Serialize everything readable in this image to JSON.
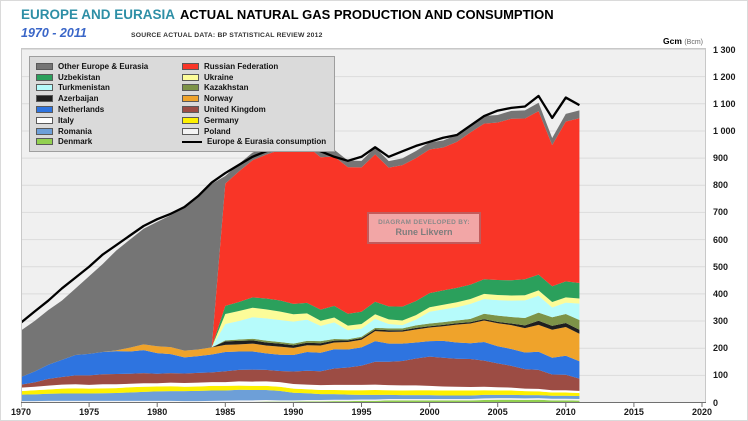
{
  "header": {
    "title_region": "EUROPE AND EURASIA",
    "title_main": "ACTUAL NATURAL GAS PRODUCTION  AND CONSUMPTION",
    "subtitle": "1970 - 2011",
    "source_note": "SOURCE ACTUAL DATA: BP STATISTICAL REVIEW  2012",
    "unit_label": "Gcm",
    "unit_label_secondary": "(Bcm)"
  },
  "annotation": {
    "line1": "DIAGRAM DEVELOPED BY:",
    "line2": "Rune Likvern"
  },
  "colors": {
    "title_region": "#2E8FA6",
    "subtitle": "#3A66C8",
    "plot_background": "#F0F0F0",
    "gridline": "#DBDBDB",
    "axis": "#707070",
    "legend_background": "#DADADA",
    "annotation_background": "#F2A6A6",
    "annotation_border": "#C25B5B"
  },
  "chart_data": {
    "type": "area",
    "stacked": true,
    "title": "Europe and Eurasia actual natural gas production and consumption 1970 - 2011",
    "unit": "Gcm (Bcm)",
    "xlim": [
      1970,
      2020
    ],
    "ylim": [
      0,
      1300
    ],
    "x_ticks": [
      1970,
      1975,
      1980,
      1985,
      1990,
      1995,
      2000,
      2005,
      2010,
      2015,
      2020
    ],
    "y_tick_labels": [
      "0",
      "100",
      "200",
      "300",
      "400",
      "500",
      "600",
      "700",
      "800",
      "900",
      "1 000",
      "1 100",
      "1 200",
      "1 300"
    ],
    "grid": true,
    "legend_position": "top-left",
    "years": [
      1970,
      1971,
      1972,
      1973,
      1974,
      1975,
      1976,
      1977,
      1978,
      1979,
      1980,
      1981,
      1982,
      1983,
      1984,
      1985,
      1986,
      1987,
      1988,
      1989,
      1990,
      1991,
      1992,
      1993,
      1994,
      1995,
      1996,
      1997,
      1998,
      1999,
      2000,
      2001,
      2002,
      2003,
      2004,
      2005,
      2006,
      2007,
      2008,
      2009,
      2010,
      2011
    ],
    "series_bottom_to_top": [
      {
        "name": "Denmark",
        "color": "#92D050",
        "values": [
          0,
          0,
          0,
          0,
          0,
          0,
          0,
          0,
          0,
          0,
          0,
          0,
          0,
          0,
          1,
          1,
          2,
          2,
          3,
          3,
          3,
          4,
          4,
          5,
          5,
          6,
          6,
          8,
          8,
          8,
          8,
          8,
          8,
          8,
          9,
          10,
          10,
          9,
          10,
          8,
          8,
          7
        ]
      },
      {
        "name": "Poland",
        "color": "#F3F3F3",
        "values": [
          5,
          5,
          6,
          6,
          6,
          6,
          6,
          6,
          6,
          6,
          6,
          6,
          5,
          5,
          5,
          6,
          6,
          6,
          6,
          5,
          5,
          5,
          5,
          5,
          5,
          5,
          5,
          5,
          5,
          5,
          5,
          5,
          5,
          5,
          6,
          6,
          6,
          6,
          6,
          6,
          6,
          6
        ]
      },
      {
        "name": "Romania",
        "color": "#6D9FD8",
        "values": [
          24,
          25,
          26,
          27,
          27,
          27,
          28,
          29,
          31,
          33,
          35,
          36,
          37,
          38,
          38,
          37,
          39,
          38,
          37,
          35,
          28,
          25,
          22,
          21,
          19,
          17,
          17,
          15,
          14,
          14,
          14,
          13,
          13,
          13,
          13,
          12,
          12,
          12,
          11,
          11,
          11,
          11
        ]
      },
      {
        "name": "Germany",
        "color": "#FDF100",
        "values": [
          13,
          15,
          16,
          18,
          19,
          18,
          18,
          18,
          19,
          19,
          18,
          18,
          16,
          16,
          17,
          17,
          15,
          15,
          15,
          15,
          15,
          15,
          15,
          15,
          16,
          17,
          18,
          17,
          17,
          18,
          18,
          18,
          18,
          18,
          17,
          16,
          16,
          15,
          14,
          12,
          12,
          11
        ]
      },
      {
        "name": "Italy",
        "color": "#FFFFFF",
        "values": [
          13,
          13,
          14,
          15,
          15,
          14,
          15,
          14,
          13,
          13,
          12,
          13,
          14,
          14,
          14,
          14,
          16,
          16,
          17,
          17,
          17,
          17,
          18,
          19,
          20,
          20,
          20,
          19,
          19,
          18,
          16,
          15,
          14,
          13,
          13,
          12,
          11,
          9,
          9,
          8,
          8,
          8
        ]
      },
      {
        "name": "United Kingdom",
        "color": "#9C4C44",
        "values": [
          11,
          16,
          25,
          28,
          33,
          35,
          37,
          38,
          37,
          37,
          35,
          35,
          35,
          36,
          36,
          40,
          42,
          44,
          42,
          41,
          46,
          51,
          51,
          60,
          64,
          71,
          84,
          86,
          90,
          99,
          108,
          106,
          103,
          103,
          96,
          88,
          80,
          72,
          70,
          58,
          57,
          45
        ]
      },
      {
        "name": "Netherlands",
        "color": "#2E74E0",
        "values": [
          28,
          40,
          52,
          63,
          75,
          79,
          82,
          84,
          82,
          85,
          76,
          70,
          59,
          62,
          66,
          71,
          68,
          67,
          61,
          60,
          61,
          69,
          68,
          71,
          66,
          67,
          76,
          67,
          64,
          59,
          57,
          62,
          60,
          58,
          69,
          63,
          62,
          61,
          67,
          62,
          70,
          64
        ]
      },
      {
        "name": "Norway",
        "color": "#EFA32B",
        "values": [
          0,
          0,
          0,
          0,
          0,
          0,
          0,
          3,
          14,
          21,
          25,
          26,
          25,
          24,
          26,
          26,
          26,
          29,
          29,
          30,
          26,
          25,
          27,
          25,
          28,
          28,
          37,
          43,
          44,
          48,
          50,
          54,
          66,
          73,
          79,
          85,
          88,
          90,
          99,
          103,
          106,
          101
        ]
      },
      {
        "name": "Azerbaijan",
        "color": "#1F1F1F",
        "values": [
          0,
          0,
          0,
          0,
          0,
          0,
          0,
          0,
          0,
          0,
          0,
          0,
          0,
          0,
          0,
          13,
          13,
          12,
          11,
          11,
          10,
          9,
          8,
          7,
          6,
          6,
          6,
          6,
          5,
          6,
          5,
          5,
          5,
          5,
          5,
          5,
          6,
          10,
          15,
          14,
          15,
          15
        ]
      },
      {
        "name": "Kazakhstan",
        "color": "#7D9348",
        "values": [
          0,
          0,
          0,
          0,
          0,
          0,
          0,
          0,
          0,
          0,
          0,
          0,
          0,
          0,
          0,
          4,
          5,
          6,
          7,
          6,
          6,
          7,
          8,
          6,
          4,
          5,
          6,
          7,
          7,
          9,
          10,
          10,
          10,
          12,
          20,
          23,
          24,
          27,
          30,
          32,
          33,
          36
        ]
      },
      {
        "name": "Turkmenistan",
        "color": "#B6FBFB",
        "values": [
          0,
          0,
          0,
          0,
          0,
          0,
          0,
          0,
          0,
          0,
          0,
          0,
          0,
          0,
          0,
          60,
          68,
          79,
          82,
          81,
          81,
          78,
          56,
          61,
          33,
          30,
          33,
          16,
          12,
          21,
          43,
          47,
          49,
          55,
          54,
          57,
          60,
          65,
          62,
          36,
          42,
          60
        ]
      },
      {
        "name": "Ukraine",
        "color": "#FCFC99",
        "values": [
          0,
          0,
          0,
          0,
          0,
          0,
          0,
          0,
          0,
          0,
          0,
          0,
          0,
          0,
          0,
          37,
          37,
          35,
          33,
          31,
          27,
          23,
          19,
          18,
          17,
          17,
          17,
          17,
          17,
          17,
          17,
          17,
          18,
          18,
          19,
          19,
          19,
          19,
          20,
          20,
          19,
          19
        ]
      },
      {
        "name": "Uzbekistan",
        "color": "#2BA05C",
        "values": [
          0,
          0,
          0,
          0,
          0,
          0,
          0,
          0,
          0,
          0,
          0,
          0,
          0,
          0,
          0,
          30,
          33,
          38,
          40,
          41,
          38,
          39,
          41,
          43,
          44,
          45,
          46,
          48,
          51,
          52,
          52,
          53,
          53,
          53,
          54,
          55,
          56,
          59,
          58,
          58,
          59,
          57
        ]
      },
      {
        "name": "Russian Federation",
        "color": "#F93527",
        "values": [
          0,
          0,
          0,
          0,
          0,
          0,
          0,
          0,
          0,
          0,
          0,
          0,
          0,
          0,
          0,
          450,
          481,
          505,
          530,
          554,
          590,
          577,
          561,
          550,
          540,
          532,
          543,
          511,
          521,
          526,
          529,
          526,
          538,
          561,
          573,
          580,
          595,
          592,
          602,
          520,
          589,
          607
        ]
      },
      {
        "name": "Other Europe & Eurasia",
        "color": "#757575",
        "values": [
          171,
          186,
          201,
          218,
          245,
          286,
          324,
          368,
          398,
          426,
          458,
          486,
          529,
          565,
          602,
          28,
          28,
          28,
          29,
          29,
          28,
          27,
          26,
          25,
          24,
          24,
          25,
          24,
          25,
          26,
          26,
          26,
          26,
          27,
          28,
          28,
          29,
          30,
          31,
          26,
          28,
          29
        ]
      }
    ],
    "consumption_line": {
      "name": "Europe & Eurasia consumption",
      "color": "#000000",
      "values": [
        294,
        335,
        375,
        420,
        460,
        500,
        545,
        580,
        615,
        650,
        675,
        695,
        720,
        760,
        810,
        845,
        875,
        905,
        925,
        940,
        950,
        945,
        925,
        905,
        890,
        905,
        940,
        905,
        925,
        945,
        960,
        975,
        985,
        1020,
        1055,
        1075,
        1085,
        1090,
        1129,
        1048,
        1123,
        1095
      ]
    }
  },
  "legend": {
    "rows_per_column": 8,
    "items": [
      {
        "label": "Other Europe & Eurasia",
        "color": "#757575",
        "type": "patch"
      },
      {
        "label": "Uzbekistan",
        "color": "#2BA05C",
        "type": "patch"
      },
      {
        "label": "Turkmenistan",
        "color": "#B6FBFB",
        "type": "patch"
      },
      {
        "label": "Azerbaijan",
        "color": "#1F1F1F",
        "type": "patch"
      },
      {
        "label": "Netherlands",
        "color": "#2E74E0",
        "type": "patch"
      },
      {
        "label": "Italy",
        "color": "#FFFFFF",
        "type": "patch"
      },
      {
        "label": "Romania",
        "color": "#6D9FD8",
        "type": "patch"
      },
      {
        "label": "Denmark",
        "color": "#92D050",
        "type": "patch"
      },
      {
        "label": "Russian Federation",
        "color": "#F93527",
        "type": "patch"
      },
      {
        "label": "Ukraine",
        "color": "#FCFC99",
        "type": "patch"
      },
      {
        "label": "Kazakhstan",
        "color": "#7D9348",
        "type": "patch"
      },
      {
        "label": "Norway",
        "color": "#EFA32B",
        "type": "patch"
      },
      {
        "label": "United Kingdom",
        "color": "#9C4C44",
        "type": "patch"
      },
      {
        "label": "Germany",
        "color": "#FDF100",
        "type": "patch"
      },
      {
        "label": "Poland",
        "color": "#F3F3F3",
        "type": "patch"
      },
      {
        "label": "Europe & Eurasia consumption",
        "color": "#000000",
        "type": "line"
      }
    ]
  }
}
